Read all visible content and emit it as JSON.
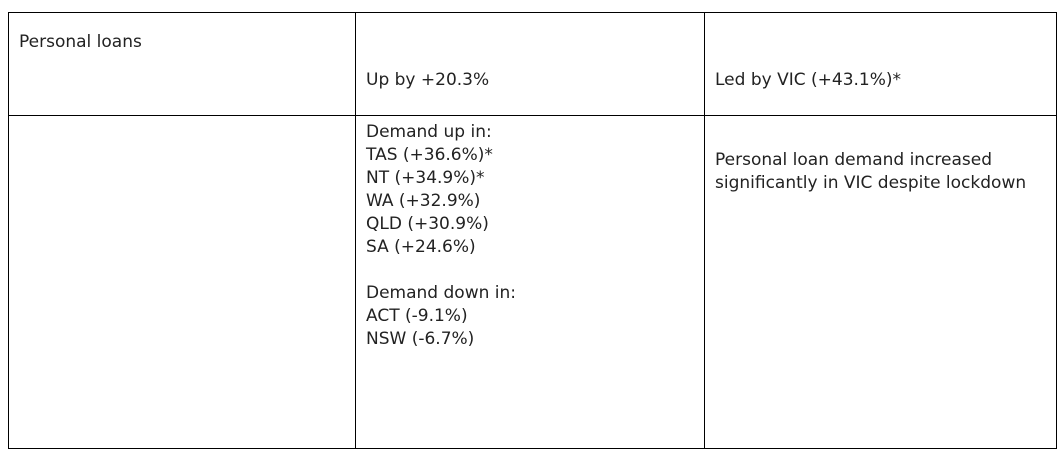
{
  "table": {
    "row1": {
      "category": "Personal loans",
      "change": "Up by +20.3%",
      "leader": "Led by VIC (+43.1%)*"
    },
    "row2": {
      "category": "",
      "demand_up_heading": "Demand up in:",
      "demand_up": [
        "TAS (+36.6%)*",
        "NT (+34.9%)*",
        "WA (+32.9%)",
        "QLD (+30.9%)",
        "SA (+24.6%)"
      ],
      "demand_down_heading": "Demand down in:",
      "demand_down": [
        "ACT (-9.1%)",
        "NSW (-6.7%)"
      ],
      "note": "Personal loan demand increased significantly in VIC despite lockdown"
    }
  }
}
